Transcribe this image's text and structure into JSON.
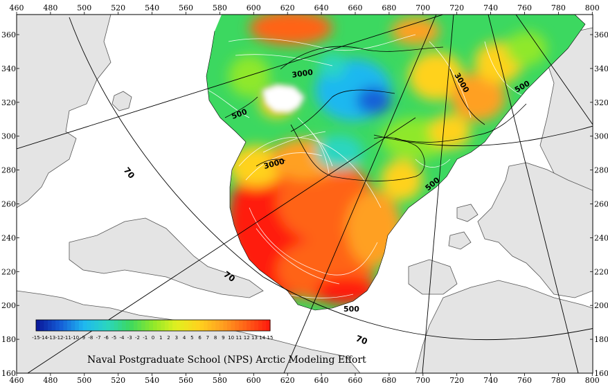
{
  "axes": {
    "x_ticks": [
      "460",
      "480",
      "500",
      "520",
      "540",
      "560",
      "580",
      "600",
      "620",
      "640",
      "660",
      "680",
      "700",
      "720",
      "740",
      "760",
      "780",
      "800"
    ],
    "y_ticks": [
      "360",
      "340",
      "320",
      "300",
      "280",
      "260",
      "240",
      "220",
      "200",
      "180",
      "160"
    ]
  },
  "contour_labels": [
    "3000",
    "3000",
    "3000",
    "500",
    "500",
    "500",
    "500"
  ],
  "latitude_labels": [
    "70",
    "70",
    "70"
  ],
  "colorbar": {
    "colors": [
      "#0a1a9c",
      "#1560d8",
      "#1fb8f0",
      "#2ad6c0",
      "#3cd860",
      "#8fe82a",
      "#e0f020",
      "#ffd21e",
      "#ffa020",
      "#ff6418",
      "#ff1e0e"
    ],
    "labels": [
      "-15",
      "-14",
      "-13",
      "-12",
      "-11",
      "-10",
      "-9",
      "-8",
      "-7",
      "-6",
      "-5",
      "-4",
      "-3",
      "-2",
      "-1",
      "0",
      "1",
      "2",
      "3",
      "4",
      "5",
      "6",
      "7",
      "8",
      "9",
      "10",
      "11",
      "12",
      "13",
      "14",
      "15"
    ]
  },
  "credit": "Naval Postgraduate School (NPS) Arctic Modeling Effort",
  "colors": {
    "land": "#e4e4e4",
    "coast": "#555555",
    "frame": "#000000"
  }
}
